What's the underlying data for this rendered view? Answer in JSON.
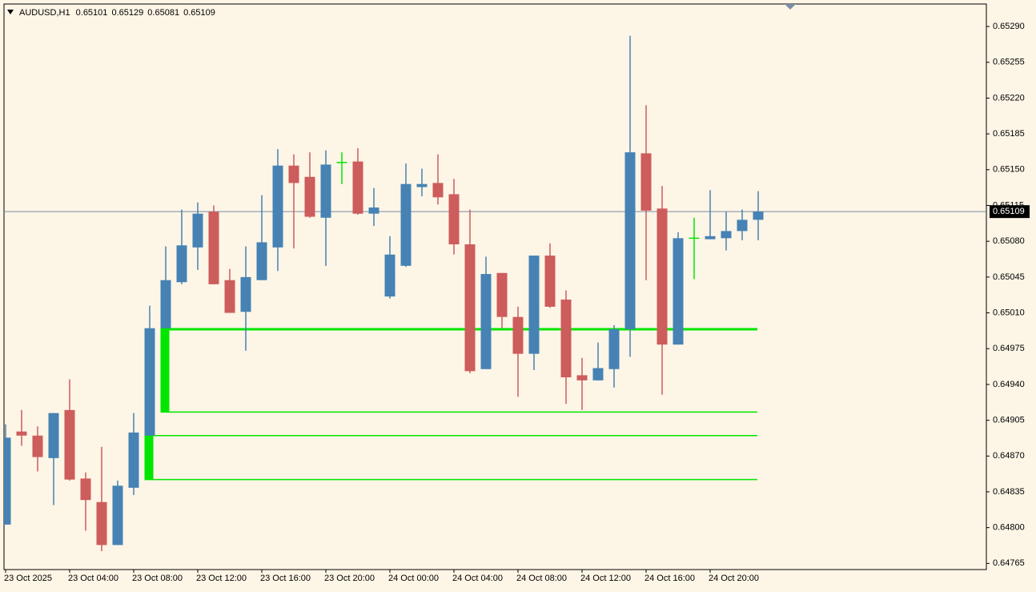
{
  "chart_data": {
    "type": "candlestick",
    "symbol": "AUDUSD,H1",
    "categories": [
      "23 Oct 2025",
      null,
      null,
      null,
      "23 Oct 04:00",
      null,
      null,
      null,
      "23 Oct 08:00",
      null,
      null,
      null,
      "23 Oct 12:00",
      null,
      null,
      null,
      "23 Oct 16:00",
      null,
      null,
      null,
      "23 Oct 20:00",
      null,
      null,
      null,
      "24 Oct 00:00",
      null,
      null,
      null,
      "24 Oct 04:00",
      null,
      null,
      null,
      "24 Oct 08:00",
      null,
      null,
      null,
      "24 Oct 12:00",
      null,
      null,
      null,
      "24 Oct 16:00",
      null,
      null,
      null,
      "24 Oct 20:00",
      null,
      null,
      null
    ],
    "open": [
      0.64803,
      0.64894,
      0.6489,
      0.64868,
      0.64915,
      0.64848,
      0.64825,
      0.64783,
      0.64839,
      0.6489,
      0.64995,
      0.6504,
      0.65074,
      0.65109,
      0.65042,
      0.65011,
      0.65042,
      0.65074,
      0.65154,
      0.65143,
      0.65103,
      0.65157,
      0.65158,
      0.65107,
      0.65026,
      0.65056,
      0.65133,
      0.65137,
      0.65126,
      0.65077,
      0.64955,
      0.65049,
      0.65006,
      0.6497,
      0.65066,
      0.65023,
      0.64949,
      0.64944,
      0.64955,
      0.64994,
      0.65166,
      0.65112,
      0.64979,
      0.65083,
      0.65082,
      0.65083,
      0.6509,
      0.65101
    ],
    "high": [
      0.64901,
      0.64915,
      0.64899,
      0.64912,
      0.64945,
      0.64854,
      0.64879,
      0.64846,
      0.64912,
      0.65017,
      0.65075,
      0.65111,
      0.65118,
      0.65115,
      0.65053,
      0.65075,
      0.65125,
      0.6517,
      0.65165,
      0.65167,
      0.65169,
      0.65167,
      0.65171,
      0.65132,
      0.65085,
      0.65156,
      0.65151,
      0.65165,
      0.65141,
      0.65111,
      0.65065,
      0.65049,
      0.65016,
      0.65066,
      0.65078,
      0.65032,
      0.64966,
      0.64981,
      0.64998,
      0.65281,
      0.65213,
      0.65134,
      0.65089,
      0.65103,
      0.6513,
      0.65109,
      0.65111,
      0.65129
    ],
    "low": [
      0.64803,
      0.6488,
      0.64855,
      0.64822,
      0.64846,
      0.64797,
      0.64777,
      0.64783,
      0.64832,
      0.6489,
      0.64995,
      0.65038,
      0.65052,
      0.65038,
      0.6501,
      0.64973,
      0.65042,
      0.65051,
      0.65073,
      0.65103,
      0.65056,
      0.65136,
      0.65106,
      0.65095,
      0.65024,
      0.65055,
      0.65124,
      0.65116,
      0.65067,
      0.64951,
      0.64955,
      0.64995,
      0.64928,
      0.64954,
      0.65015,
      0.64921,
      0.64915,
      0.64944,
      0.64937,
      0.64967,
      0.65042,
      0.6493,
      0.64979,
      0.65043,
      0.65082,
      0.65071,
      0.65081,
      0.65081
    ],
    "close": [
      0.64888,
      0.6489,
      0.64869,
      0.64912,
      0.64847,
      0.64827,
      0.64783,
      0.64841,
      0.64893,
      0.64995,
      0.65042,
      0.65076,
      0.65107,
      0.65038,
      0.6501,
      0.65045,
      0.65079,
      0.65154,
      0.65137,
      0.65104,
      0.65155,
      0.65157,
      0.65107,
      0.65113,
      0.65067,
      0.65136,
      0.65136,
      0.65123,
      0.65077,
      0.64953,
      0.65048,
      0.65006,
      0.6497,
      0.65066,
      0.65016,
      0.64947,
      0.64944,
      0.64956,
      0.64994,
      0.65167,
      0.6511,
      0.64979,
      0.65083,
      0.65083,
      0.65085,
      0.6509,
      0.65101,
      0.65109
    ],
    "up_color": "#4682b4",
    "down_color": "#cd5c5c",
    "doji_color": "#00e600",
    "bid_line_color": "#7a8ea3",
    "zone_color": "#00e600",
    "zones": [
      {
        "start": 10,
        "top": 0.64994,
        "bottom": 0.64913
      },
      {
        "start": 9,
        "top": 0.6489,
        "bottom": 0.64847
      }
    ],
    "ylim": [
      0.64759,
      0.65312
    ],
    "yticks": [
      {
        "value": 0.6529,
        "label": "0.65290"
      },
      {
        "value": 0.65255,
        "label": "0.65255"
      },
      {
        "value": 0.6522,
        "label": "0.65220"
      },
      {
        "value": 0.65185,
        "label": "0.65185"
      },
      {
        "value": 0.6515,
        "label": "0.65150"
      },
      {
        "value": 0.65115,
        "label": "0.65115"
      },
      {
        "value": 0.6508,
        "label": "0.65080"
      },
      {
        "value": 0.65045,
        "label": "0.65045"
      },
      {
        "value": 0.6501,
        "label": "0.65010"
      },
      {
        "value": 0.64975,
        "label": "0.64975"
      },
      {
        "value": 0.6494,
        "label": "0.64940"
      },
      {
        "value": 0.64905,
        "label": "0.64905"
      },
      {
        "value": 0.6487,
        "label": "0.64870"
      },
      {
        "value": 0.64835,
        "label": "0.64835"
      },
      {
        "value": 0.648,
        "label": "0.64800"
      },
      {
        "value": 0.64765,
        "label": "0.64765"
      }
    ],
    "grid": false
  }
}
